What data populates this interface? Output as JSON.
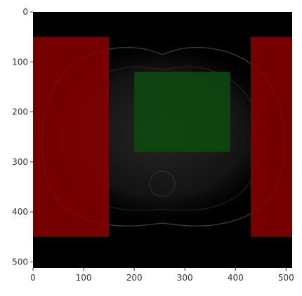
{
  "image": {
    "type": "image",
    "description": "grayscale tomographic slice with colored rectangular overlays",
    "background_color": "#000000",
    "data_extent": {
      "x": [
        0,
        512
      ],
      "y": [
        0,
        512
      ]
    }
  },
  "axes": {
    "x_ticks": [
      {
        "value": 0,
        "label": "0"
      },
      {
        "value": 100,
        "label": "100"
      },
      {
        "value": 200,
        "label": "200"
      },
      {
        "value": 300,
        "label": "300"
      },
      {
        "value": 400,
        "label": "400"
      },
      {
        "value": 500,
        "label": "500"
      }
    ],
    "y_ticks": [
      {
        "value": 0,
        "label": "0"
      },
      {
        "value": 100,
        "label": "100"
      },
      {
        "value": 200,
        "label": "200"
      },
      {
        "value": 300,
        "label": "300"
      },
      {
        "value": 400,
        "label": "400"
      },
      {
        "value": 500,
        "label": "500"
      }
    ],
    "x_range": [
      0,
      512
    ],
    "y_range": [
      0,
      512
    ],
    "y_inverted": true,
    "grid": false
  },
  "overlays": [
    {
      "name": "left-red-region",
      "color": "#8b0000",
      "x0": 0,
      "x1": 150,
      "y0": 50,
      "y1": 450
    },
    {
      "name": "right-red-region",
      "color": "#8b0000",
      "x0": 430,
      "x1": 512,
      "y0": 50,
      "y1": 450
    },
    {
      "name": "center-green-region",
      "color": "#0d4a0d",
      "x0": 200,
      "x1": 390,
      "y0": 120,
      "y1": 280
    }
  ],
  "colors": {
    "tick_color": "#333333",
    "overlay_red": "#8b0000",
    "overlay_green": "#0d4a0d"
  }
}
